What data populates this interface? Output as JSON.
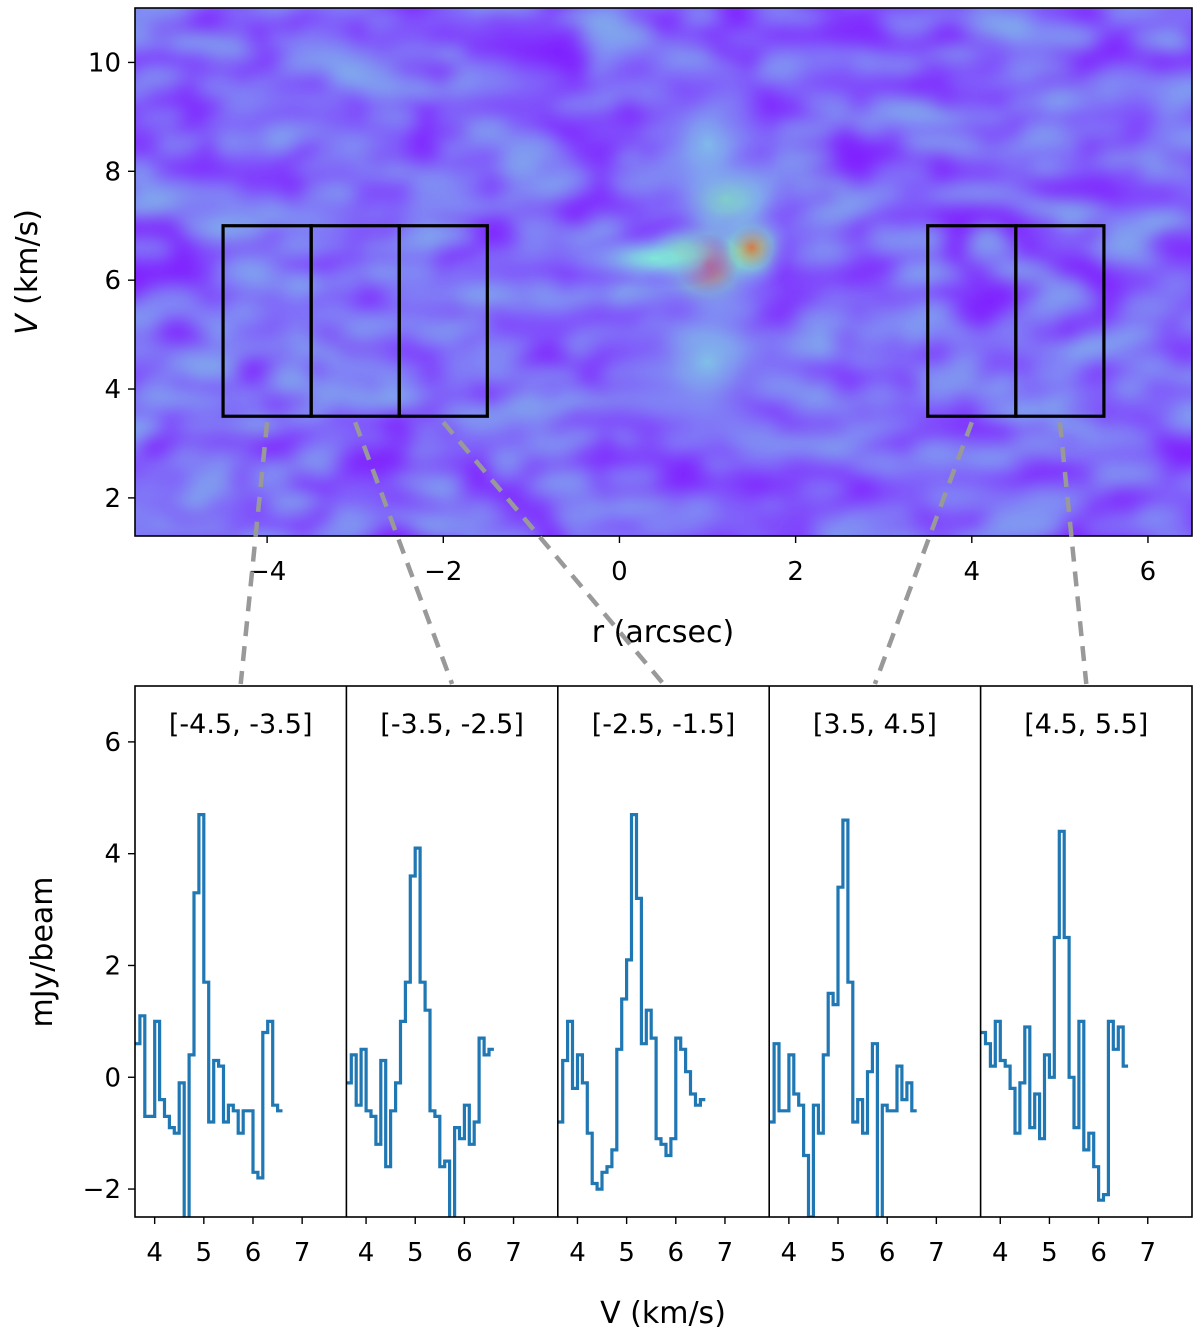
{
  "chart_data": [
    {
      "type": "heatmap",
      "title": "",
      "xlabel": "r (arcsec)",
      "ylabel_italic": "V",
      "ylabel_rest": " (km/s)",
      "xlim": [
        -5.5,
        6.5
      ],
      "ylim": [
        1.3,
        11.0
      ],
      "xticks": [
        -4,
        -2,
        0,
        2,
        4,
        6
      ],
      "xtick_labels": [
        "−4",
        "−2",
        "0",
        "2",
        "4",
        "6"
      ],
      "yticks": [
        2,
        4,
        6,
        8,
        10
      ],
      "ytick_labels": [
        "2",
        "4",
        "6",
        "8",
        "10"
      ],
      "colormap": "rainbow",
      "background_color": "#8020ff",
      "emission_blobs": [
        {
          "x": 1.0,
          "v": 6.3,
          "peak": 0.92,
          "sx": 0.45,
          "sv": 0.7
        },
        {
          "x": 1.5,
          "v": 6.6,
          "peak": 0.82,
          "sx": 0.3,
          "sv": 0.5
        },
        {
          "x": 0.7,
          "v": 6.5,
          "peak": 0.55,
          "sx": 0.35,
          "sv": 0.4
        },
        {
          "x": 1.2,
          "v": 7.5,
          "peak": 0.45,
          "sx": 0.5,
          "sv": 0.6
        },
        {
          "x": 0.4,
          "v": 6.4,
          "peak": 0.3,
          "sx": 0.6,
          "sv": 0.35
        },
        {
          "x": 1.0,
          "v": 4.5,
          "peak": 0.2,
          "sx": 0.8,
          "sv": 1.2
        },
        {
          "x": 1.0,
          "v": 8.5,
          "peak": 0.18,
          "sx": 0.5,
          "sv": 1.0
        }
      ],
      "extraction_boxes": [
        {
          "r_range": [
            -4.5,
            -3.5
          ],
          "v_range": [
            3.5,
            7.0
          ]
        },
        {
          "r_range": [
            -3.5,
            -2.5
          ],
          "v_range": [
            3.5,
            7.0
          ]
        },
        {
          "r_range": [
            -2.5,
            -1.5
          ],
          "v_range": [
            3.5,
            7.0
          ]
        },
        {
          "r_range": [
            3.5,
            4.5
          ],
          "v_range": [
            3.5,
            7.0
          ]
        },
        {
          "r_range": [
            4.5,
            5.5
          ],
          "v_range": [
            3.5,
            7.0
          ]
        }
      ],
      "connector_line_color": "#999999",
      "box_color": "#000000"
    },
    {
      "type": "line",
      "style": "step",
      "xlabel": "V (km/s)",
      "ylabel": "mJy/beam",
      "xlim": [
        3.6,
        7.9
      ],
      "ylim": [
        -2.5,
        7.0
      ],
      "xticks": [
        4,
        5,
        6,
        7
      ],
      "xtick_labels": [
        "4",
        "5",
        "6",
        "7"
      ],
      "yticks": [
        -2,
        0,
        2,
        4,
        6
      ],
      "ytick_labels": [
        "−2",
        "0",
        "2",
        "4",
        "6"
      ],
      "line_color": "#1f77b4",
      "x_start": 3.6,
      "x_step": 0.1,
      "panels": [
        {
          "label": "[-4.5, -3.5]",
          "values": [
            0.6,
            1.1,
            -0.7,
            -0.7,
            1.0,
            -0.4,
            -0.7,
            -0.9,
            -1.0,
            -0.1,
            -2.6,
            0.4,
            3.3,
            4.7,
            1.7,
            -0.8,
            0.3,
            0.2,
            -0.8,
            -0.5,
            -0.6,
            -1.0,
            -0.6,
            -0.6,
            -1.7,
            -1.8,
            0.8,
            1.0,
            -0.5,
            -0.6
          ]
        },
        {
          "label": "[-3.5, -2.5]",
          "values": [
            -0.1,
            0.4,
            -0.5,
            0.5,
            -0.6,
            -0.7,
            -1.2,
            0.3,
            -1.6,
            -0.6,
            -0.1,
            1.0,
            1.7,
            3.6,
            4.1,
            1.7,
            1.2,
            -0.6,
            -0.7,
            -1.6,
            -1.5,
            -2.8,
            -0.9,
            -1.1,
            -0.5,
            -1.2,
            -0.8,
            0.7,
            0.4,
            0.5
          ]
        },
        {
          "label": "[-2.5, -1.5]",
          "values": [
            -0.8,
            0.3,
            1.0,
            -0.2,
            0.4,
            -0.1,
            -1.0,
            -1.9,
            -2.0,
            -1.7,
            -1.6,
            -1.3,
            0.5,
            1.4,
            2.1,
            4.7,
            3.2,
            0.6,
            1.2,
            0.7,
            -1.1,
            -1.2,
            -1.4,
            -1.1,
            0.7,
            0.5,
            0.1,
            -0.3,
            -0.5,
            -0.4
          ]
        },
        {
          "label": "[3.5, 4.5]",
          "values": [
            -0.8,
            0.6,
            -0.6,
            -0.6,
            0.4,
            -0.3,
            -0.5,
            -1.4,
            -2.5,
            -0.5,
            -1.0,
            0.4,
            1.5,
            1.3,
            3.4,
            4.6,
            1.7,
            -0.8,
            -0.4,
            -1.0,
            0.1,
            0.6,
            -2.6,
            -0.5,
            -0.6,
            -0.6,
            0.2,
            -0.4,
            -0.1,
            -0.6
          ]
        },
        {
          "label": "[4.5, 5.5]",
          "values": [
            0.8,
            0.6,
            0.2,
            1.0,
            0.3,
            0.2,
            -0.2,
            -1.0,
            -0.1,
            0.9,
            -0.9,
            -0.3,
            -1.1,
            0.4,
            0.0,
            2.5,
            4.4,
            2.5,
            0.0,
            -0.9,
            1.0,
            -1.3,
            -1.0,
            -1.6,
            -2.2,
            -2.1,
            1.0,
            0.5,
            0.9,
            0.2
          ]
        }
      ]
    }
  ]
}
